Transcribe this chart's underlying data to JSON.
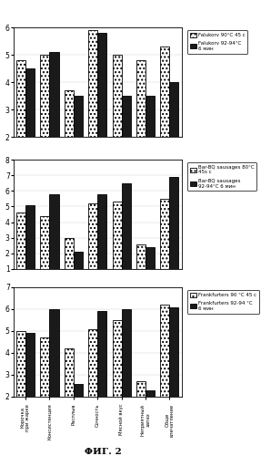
{
  "categories": [
    "Корочка\nпри жарке",
    "Консистенция",
    "Расплыв",
    "Сочность",
    "Мясной вкус",
    "Неприятный\nзапах",
    "Обще\nвпечатление"
  ],
  "chart1": {
    "series1": [
      4.8,
      5.0,
      3.7,
      5.9,
      5.0,
      4.8,
      5.3
    ],
    "series2": [
      4.5,
      5.1,
      3.5,
      5.8,
      3.5,
      3.5,
      4.0
    ],
    "ylim": [
      2,
      6
    ],
    "yticks": [
      2,
      3,
      4,
      5,
      6
    ],
    "legend1": "Falukorv 90°C 45 c",
    "legend2": "Falukorv 92-94°C\n6 мин"
  },
  "chart2": {
    "series1": [
      4.6,
      4.4,
      3.0,
      5.2,
      5.3,
      2.6,
      5.5
    ],
    "series2": [
      5.1,
      5.8,
      2.1,
      5.8,
      6.5,
      2.4,
      6.9
    ],
    "ylim": [
      1,
      8
    ],
    "yticks": [
      1,
      2,
      3,
      4,
      5,
      6,
      7,
      8
    ],
    "legend1": "Bar-BQ sausages 80°C\n45s c",
    "legend2": "Bar-BQ sausages\n92-94°C 6 мин"
  },
  "chart3": {
    "series1": [
      5.0,
      4.7,
      4.2,
      5.1,
      5.5,
      2.7,
      6.2
    ],
    "series2": [
      4.9,
      6.0,
      2.6,
      5.9,
      6.0,
      2.3,
      6.1
    ],
    "ylim": [
      2,
      7
    ],
    "yticks": [
      2,
      3,
      4,
      5,
      6,
      7
    ],
    "legend1": "Frankfurters 90 °C 45 c",
    "legend2": "Frankfurters 92-94 °C\n6 мин"
  },
  "fig_label": "ΦИГ. 2",
  "bar_width": 0.38
}
